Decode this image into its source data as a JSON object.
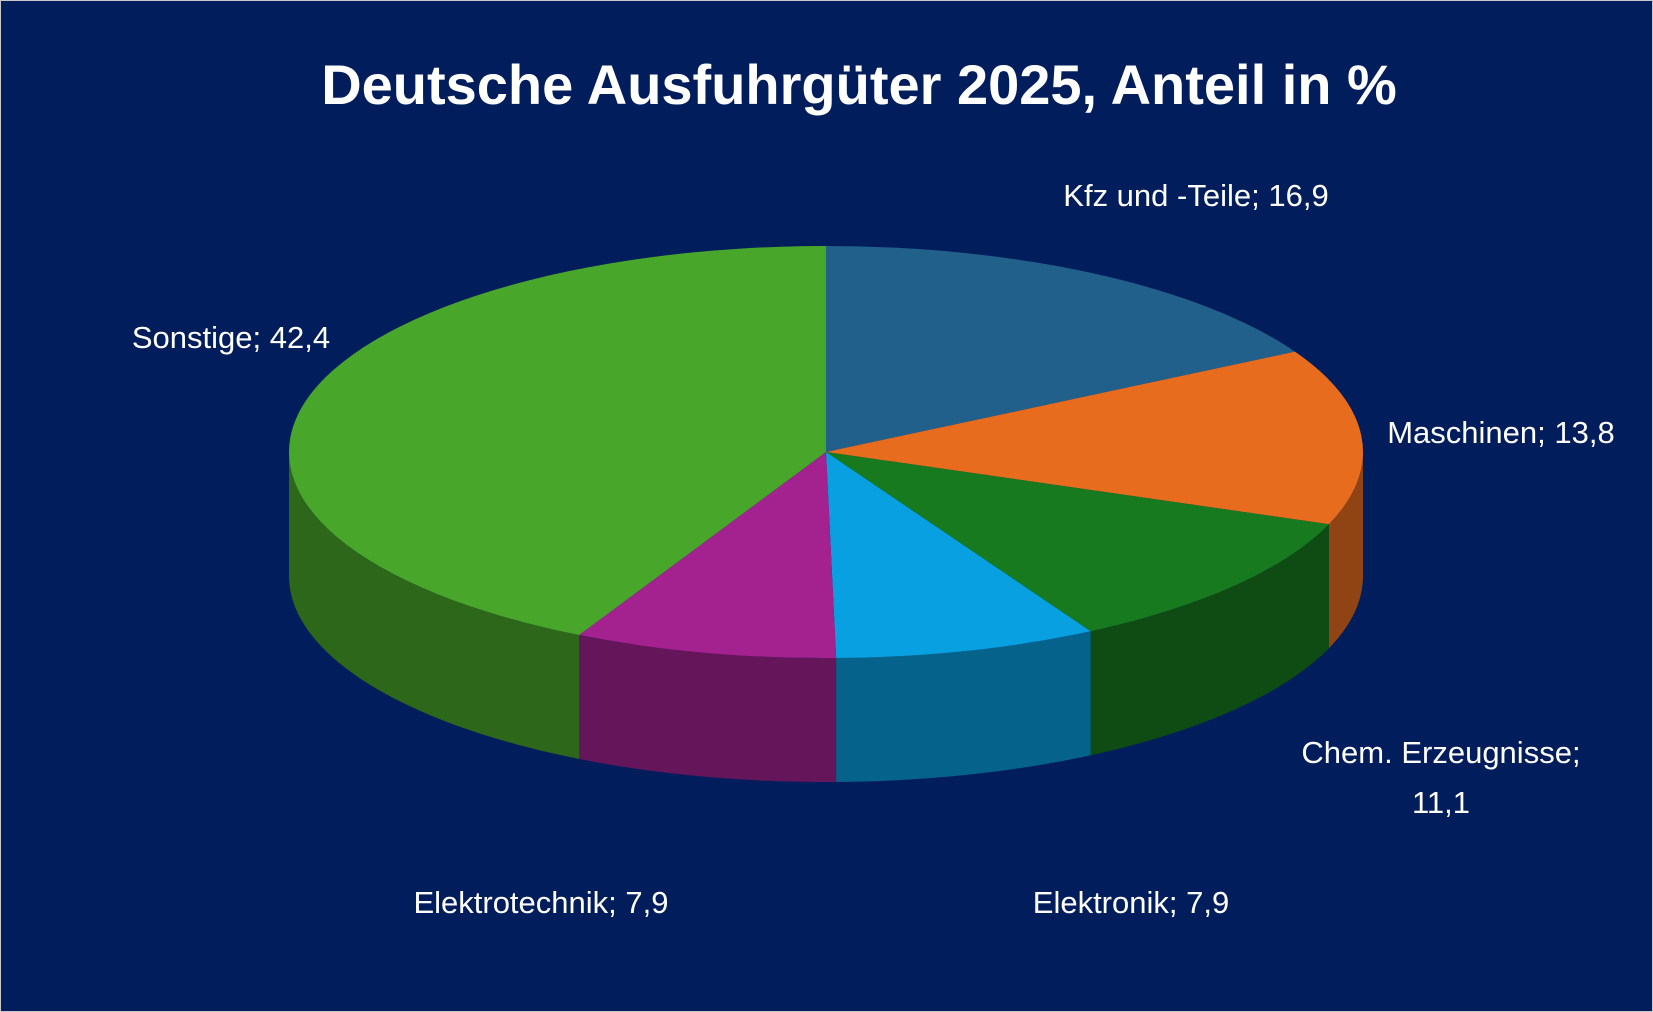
{
  "chart_data": {
    "type": "pie3d",
    "title": "Deutsche Ausfuhrgüter 2025, Anteil in %",
    "categories": [
      "Kfz und -Teile",
      "Maschinen",
      "Chem. Erzeugnisse",
      "Elektronik",
      "Elektrotechnik",
      "Sonstige"
    ],
    "values": [
      16.9,
      13.8,
      11.1,
      7.9,
      7.9,
      42.4
    ],
    "value_labels": [
      "16,9",
      "13,8",
      "11,1",
      "7,9",
      "7,9",
      "42,4"
    ],
    "separator": ";",
    "colors": [
      "#22608c",
      "#e86c1e",
      "#177a1e",
      "#08a0e0",
      "#a3228f",
      "#48a62a"
    ]
  }
}
